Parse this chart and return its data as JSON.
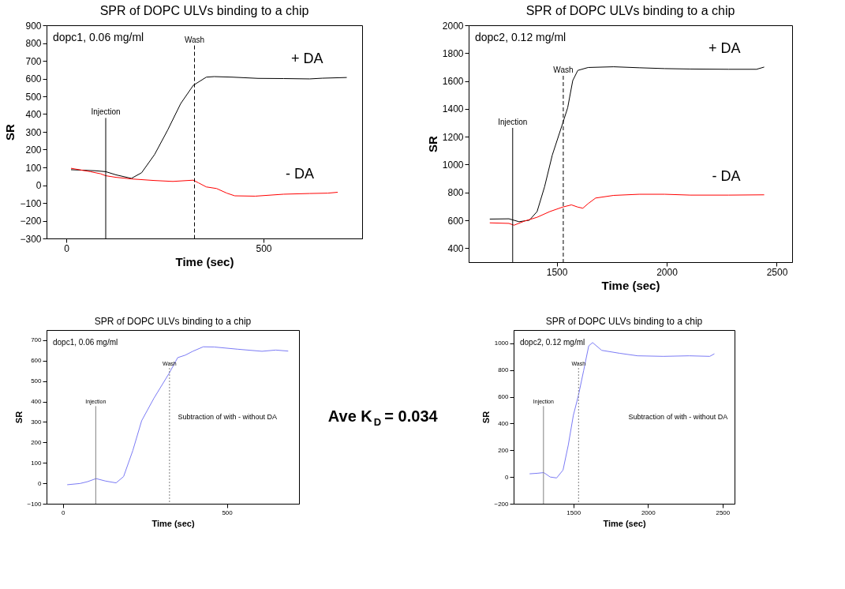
{
  "chart_data": [
    {
      "type": "line",
      "title": "SPR of DOPC ULVs binding to a chip",
      "xlabel": "Time (sec)",
      "ylabel": "SR",
      "xlim": [
        -50,
        750
      ],
      "ylim": [
        -300,
        900
      ],
      "xticks": [
        0,
        500
      ],
      "yticks": [
        -300,
        -200,
        -100,
        0,
        100,
        200,
        300,
        400,
        500,
        600,
        700,
        800,
        900
      ],
      "grid": false,
      "annotations": [
        "dopc1, 0.06 mg/ml"
      ],
      "ref_lines": [
        {
          "axis": "x",
          "value": 100,
          "label": "Injection",
          "color": "#000000",
          "line_style": "solid"
        },
        {
          "axis": "x",
          "value": 325,
          "label": "Wash",
          "color": "#000000",
          "line_style": "dashed"
        }
      ],
      "series": [
        {
          "name": "+ DA",
          "color": "#000000",
          "x": [
            12,
            74,
            100,
            126,
            165,
            191,
            224,
            257,
            290,
            322,
            355,
            375,
            420,
            486,
            551,
            617,
            649,
            711
          ],
          "values": [
            87,
            81,
            76,
            58,
            38,
            70,
            173,
            310,
            459,
            562,
            608,
            611,
            608,
            601,
            600,
            598,
            602,
            606
          ]
        },
        {
          "name": "- DA",
          "color": "#ff0000",
          "x": [
            12,
            61,
            87,
            100,
            126,
            165,
            224,
            270,
            322,
            335,
            355,
            381,
            407,
            427,
            479,
            551,
            617,
            663,
            688
          ],
          "values": [
            95,
            76,
            64,
            53,
            44,
            35,
            26,
            21,
            28,
            13,
            -10,
            -19,
            -45,
            -60,
            -62,
            -51,
            -47,
            -45,
            -40
          ]
        }
      ]
    },
    {
      "type": "line",
      "title": "SPR of DOPC ULVs binding to a chip",
      "xlabel": "Time (sec)",
      "ylabel": "SR",
      "xlim": [
        1100,
        2570
      ],
      "ylim": [
        300,
        2000
      ],
      "xticks": [
        1500,
        2000,
        2500
      ],
      "yticks": [
        400,
        600,
        800,
        1000,
        1200,
        1400,
        1600,
        1800,
        2000
      ],
      "grid": false,
      "annotations": [
        "dopc2, 0.12 mg/ml"
      ],
      "ref_lines": [
        {
          "axis": "x",
          "value": 1300,
          "label": "Injection",
          "color": "#000000",
          "line_style": "solid"
        },
        {
          "axis": "x",
          "value": 1530,
          "label": "Wash",
          "color": "#000000",
          "line_style": "dashed"
        }
      ],
      "series": [
        {
          "name": "+ DA",
          "color": "#000000",
          "x": [
            1196,
            1283,
            1329,
            1376,
            1411,
            1445,
            1480,
            1527,
            1550,
            1573,
            1596,
            1643,
            1759,
            1875,
            1991,
            2107,
            2281,
            2408,
            2443
          ],
          "values": [
            609,
            611,
            590,
            601,
            663,
            841,
            1068,
            1295,
            1408,
            1603,
            1676,
            1697,
            1702,
            1695,
            1689,
            1686,
            1684,
            1684,
            1700
          ]
        },
        {
          "name": "- DA",
          "color": "#ff0000",
          "x": [
            1196,
            1283,
            1306,
            1353,
            1411,
            1469,
            1527,
            1567,
            1596,
            1619,
            1643,
            1677,
            1759,
            1875,
            1991,
            2107,
            2281,
            2443
          ],
          "values": [
            582,
            578,
            565,
            594,
            622,
            663,
            695,
            711,
            695,
            687,
            720,
            760,
            779,
            787,
            787,
            781,
            781,
            783
          ]
        }
      ]
    },
    {
      "type": "line",
      "title": "SPR of DOPC ULVs binding to a chip",
      "xlabel": "Time (sec)",
      "ylabel": "SR",
      "xlim": [
        -50,
        720
      ],
      "ylim": [
        -100,
        750
      ],
      "xticks": [
        0,
        500
      ],
      "yticks": [
        -100,
        0,
        100,
        200,
        300,
        400,
        500,
        600,
        700
      ],
      "grid": false,
      "annotations": [
        "dopc1, 0.06 mg/ml",
        "Subtraction of with - without DA"
      ],
      "ref_lines": [
        {
          "axis": "x",
          "value": 100,
          "label": "Injection",
          "color": "#808080",
          "line_style": "solid"
        },
        {
          "axis": "x",
          "value": 325,
          "label": "Wash",
          "color": "#808080",
          "line_style": "dotted"
        }
      ],
      "series": [
        {
          "color": "#7b7bf5",
          "x": [
            13,
            52,
            75,
            101,
            130,
            162,
            185,
            213,
            240,
            277,
            323,
            350,
            373,
            396,
            428,
            461,
            534,
            607,
            649,
            687
          ],
          "values": [
            -7,
            -1,
            8,
            23,
            11,
            2,
            33,
            160,
            306,
            415,
            536,
            615,
            627,
            646,
            668,
            667,
            656,
            646,
            652,
            647
          ]
        }
      ]
    },
    {
      "type": "other",
      "annotations": [
        "Ave K$_{D}$ = 0.034"
      ]
    },
    {
      "type": "line",
      "title": "SPR of DOPC ULVs binding to a chip",
      "xlabel": "Time (sec)",
      "ylabel": "SR",
      "xlim": [
        1100,
        2580
      ],
      "ylim": [
        -200,
        1100
      ],
      "xticks": [
        1500,
        2000,
        2500
      ],
      "yticks": [
        -200,
        0,
        200,
        400,
        600,
        800,
        1000
      ],
      "grid": false,
      "annotations": [
        "dopc2, 0.12 mg/ml",
        "Subtraction of with - without DA"
      ],
      "ref_lines": [
        {
          "axis": "x",
          "value": 1300,
          "label": "Injection",
          "color": "#808080",
          "line_style": "solid"
        },
        {
          "axis": "x",
          "value": 1535,
          "label": "Wash",
          "color": "#808080",
          "line_style": "dotted"
        }
      ],
      "series": [
        {
          "color": "#7b7bf5",
          "x": [
            1207,
            1259,
            1302,
            1345,
            1388,
            1431,
            1466,
            1500,
            1534,
            1569,
            1603,
            1629,
            1690,
            1810,
            1931,
            2103,
            2276,
            2414,
            2445
          ],
          "values": [
            24,
            28,
            33,
            0,
            -7,
            52,
            238,
            461,
            610,
            796,
            981,
            1006,
            948,
            926,
            907,
            903,
            907,
            903,
            922
          ]
        }
      ]
    }
  ]
}
